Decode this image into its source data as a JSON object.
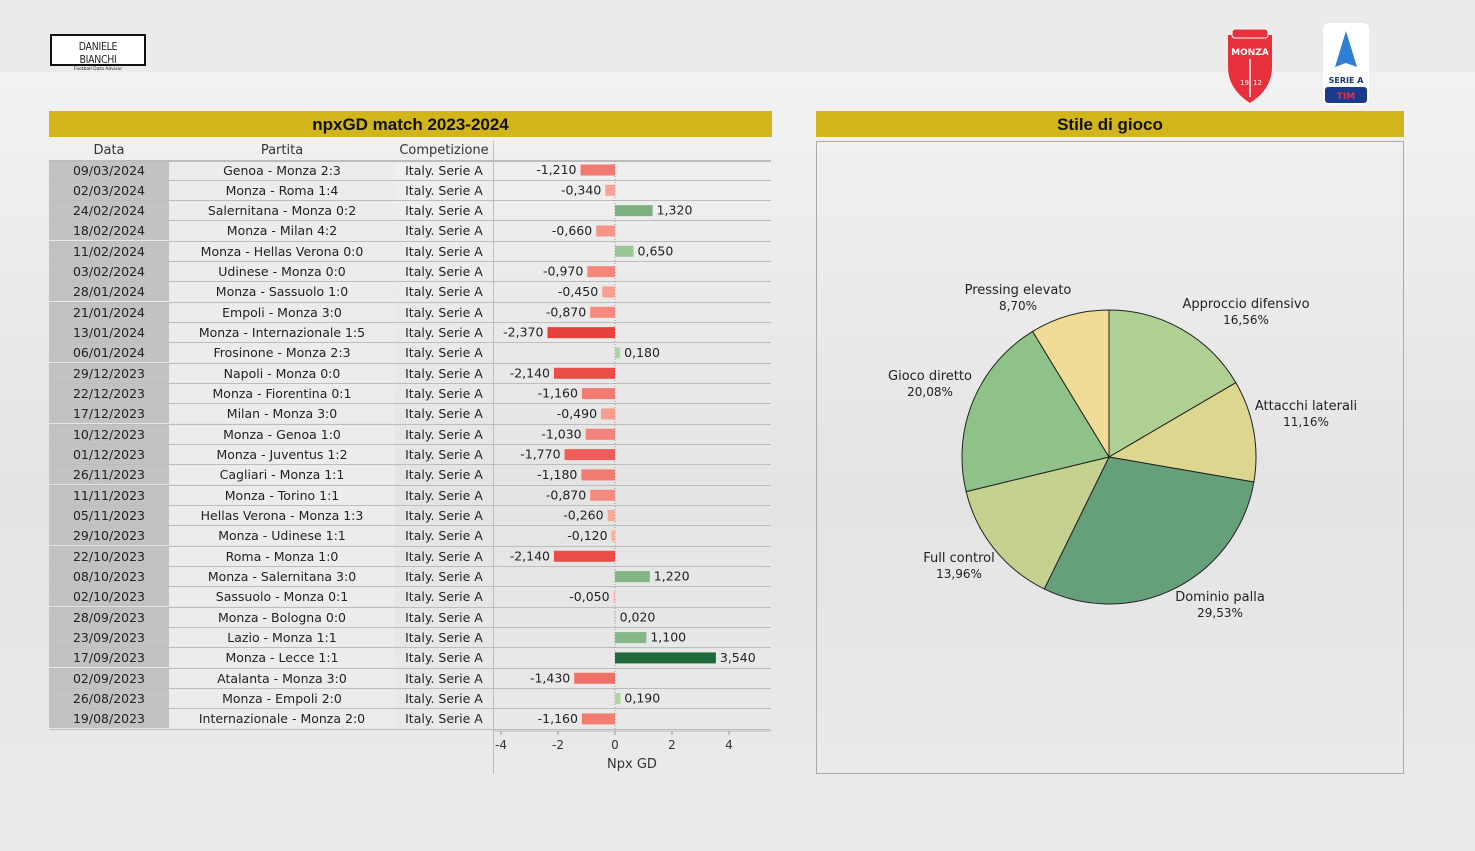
{
  "brand": {
    "name": "DANIELE BIANCHI",
    "tagline": "Football Data Advisor"
  },
  "logos": {
    "club": "MONZA",
    "club_years": [
      "19",
      "12"
    ],
    "league": "SERIE A",
    "sponsor": "TIM"
  },
  "left_panel": {
    "title": "npxGD match 2023-2024",
    "columns": [
      "Data",
      "Partita",
      "Competizione"
    ]
  },
  "right_panel": {
    "title": "Stile di gioco"
  },
  "colors": {
    "header": "#d1b51a",
    "negative_strong": "#e8403c",
    "negative_light": "#fcb5a5",
    "positive_light": "#b4dca8",
    "positive_strong": "#1e6b3c"
  },
  "chart_data": [
    {
      "type": "bar",
      "orientation": "horizontal",
      "xlabel": "Npx GD",
      "xlim": [
        -4,
        4
      ],
      "xticks": [
        "-4",
        "-2",
        "0",
        "2",
        "4"
      ],
      "rows": [
        {
          "date": "09/03/2024",
          "match": "Genoa - Monza 2:3",
          "comp": "Italy. Serie A",
          "value": -1.21,
          "label": "-1,210"
        },
        {
          "date": "02/03/2024",
          "match": "Monza - Roma 1:4",
          "comp": "Italy. Serie A",
          "value": -0.34,
          "label": "-0,340"
        },
        {
          "date": "24/02/2024",
          "match": "Salernitana - Monza 0:2",
          "comp": "Italy. Serie A",
          "value": 1.32,
          "label": "1,320"
        },
        {
          "date": "18/02/2024",
          "match": "Monza - Milan 4:2",
          "comp": "Italy. Serie A",
          "value": -0.66,
          "label": "-0,660"
        },
        {
          "date": "11/02/2024",
          "match": "Monza - Hellas Verona 0:0",
          "comp": "Italy. Serie A",
          "value": 0.65,
          "label": "0,650"
        },
        {
          "date": "03/02/2024",
          "match": "Udinese - Monza 0:0",
          "comp": "Italy. Serie A",
          "value": -0.97,
          "label": "-0,970"
        },
        {
          "date": "28/01/2024",
          "match": "Monza - Sassuolo 1:0",
          "comp": "Italy. Serie A",
          "value": -0.45,
          "label": "-0,450"
        },
        {
          "date": "21/01/2024",
          "match": "Empoli - Monza 3:0",
          "comp": "Italy. Serie A",
          "value": -0.87,
          "label": "-0,870"
        },
        {
          "date": "13/01/2024",
          "match": "Monza - Internazionale 1:5",
          "comp": "Italy. Serie A",
          "value": -2.37,
          "label": "-2,370"
        },
        {
          "date": "06/01/2024",
          "match": "Frosinone - Monza 2:3",
          "comp": "Italy. Serie A",
          "value": 0.18,
          "label": "0,180"
        },
        {
          "date": "29/12/2023",
          "match": "Napoli - Monza 0:0",
          "comp": "Italy. Serie A",
          "value": -2.14,
          "label": "-2,140"
        },
        {
          "date": "22/12/2023",
          "match": "Monza - Fiorentina 0:1",
          "comp": "Italy. Serie A",
          "value": -1.16,
          "label": "-1,160"
        },
        {
          "date": "17/12/2023",
          "match": "Milan - Monza 3:0",
          "comp": "Italy. Serie A",
          "value": -0.49,
          "label": "-0,490"
        },
        {
          "date": "10/12/2023",
          "match": "Monza - Genoa 1:0",
          "comp": "Italy. Serie A",
          "value": -1.03,
          "label": "-1,030"
        },
        {
          "date": "01/12/2023",
          "match": "Monza - Juventus 1:2",
          "comp": "Italy. Serie A",
          "value": -1.77,
          "label": "-1,770"
        },
        {
          "date": "26/11/2023",
          "match": "Cagliari - Monza 1:1",
          "comp": "Italy. Serie A",
          "value": -1.18,
          "label": "-1,180"
        },
        {
          "date": "11/11/2023",
          "match": "Monza - Torino 1:1",
          "comp": "Italy. Serie A",
          "value": -0.87,
          "label": "-0,870"
        },
        {
          "date": "05/11/2023",
          "match": "Hellas Verona - Monza 1:3",
          "comp": "Italy. Serie A",
          "value": -0.26,
          "label": "-0,260"
        },
        {
          "date": "29/10/2023",
          "match": "Monza - Udinese 1:1",
          "comp": "Italy. Serie A",
          "value": -0.12,
          "label": "-0,120"
        },
        {
          "date": "22/10/2023",
          "match": "Roma - Monza 1:0",
          "comp": "Italy. Serie A",
          "value": -2.14,
          "label": "-2,140"
        },
        {
          "date": "08/10/2023",
          "match": "Monza - Salernitana 3:0",
          "comp": "Italy. Serie A",
          "value": 1.22,
          "label": "1,220"
        },
        {
          "date": "02/10/2023",
          "match": "Sassuolo - Monza 0:1",
          "comp": "Italy. Serie A",
          "value": -0.05,
          "label": "-0,050"
        },
        {
          "date": "28/09/2023",
          "match": "Monza - Bologna 0:0",
          "comp": "Italy. Serie A",
          "value": 0.02,
          "label": "0,020"
        },
        {
          "date": "23/09/2023",
          "match": "Lazio - Monza 1:1",
          "comp": "Italy. Serie A",
          "value": 1.1,
          "label": "1,100"
        },
        {
          "date": "17/09/2023",
          "match": "Monza - Lecce 1:1",
          "comp": "Italy. Serie A",
          "value": 3.54,
          "label": "3,540"
        },
        {
          "date": "02/09/2023",
          "match": "Atalanta - Monza 3:0",
          "comp": "Italy. Serie A",
          "value": -1.43,
          "label": "-1,430"
        },
        {
          "date": "26/08/2023",
          "match": "Monza - Empoli 2:0",
          "comp": "Italy. Serie A",
          "value": 0.19,
          "label": "0,190"
        },
        {
          "date": "19/08/2023",
          "match": "Internazionale - Monza 2:0",
          "comp": "Italy. Serie A",
          "value": -1.16,
          "label": "-1,160"
        }
      ]
    },
    {
      "type": "pie",
      "slices": [
        {
          "name": "Approccio difensivo",
          "value": 16.56,
          "label": "16,56%",
          "color": "#afd093"
        },
        {
          "name": "Attacchi laterali",
          "value": 11.16,
          "label": "11,16%",
          "color": "#dcd68f"
        },
        {
          "name": "Dominio palla",
          "value": 29.53,
          "label": "29,53%",
          "color": "#65a07a"
        },
        {
          "name": "Full control",
          "value": 13.96,
          "label": "13,96%",
          "color": "#c5d18f"
        },
        {
          "name": "Gioco diretto",
          "value": 20.08,
          "label": "20,08%",
          "color": "#8fc289"
        },
        {
          "name": "Pressing elevato",
          "value": 8.7,
          "label": "8,70%",
          "color": "#f0dc96"
        }
      ]
    }
  ]
}
